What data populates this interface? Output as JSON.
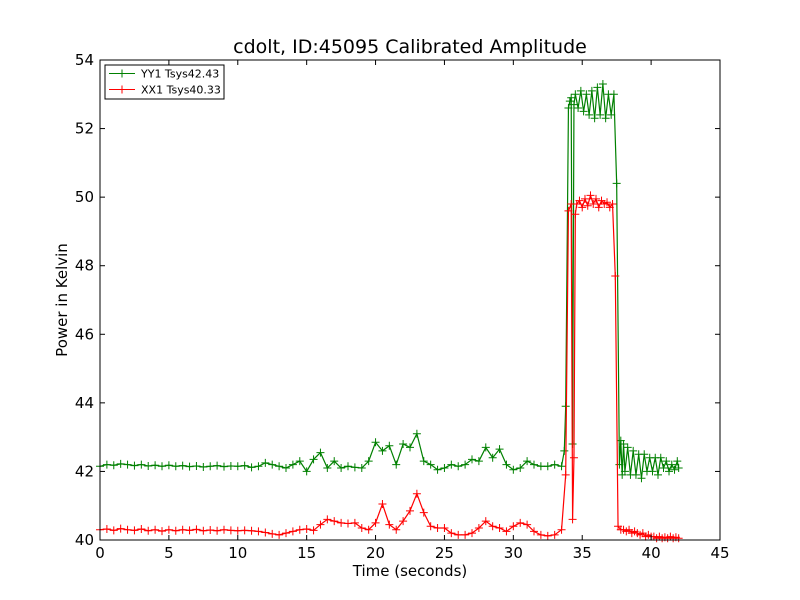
{
  "chart_data": {
    "type": "line",
    "title": "cdolt, ID:45095 Calibrated Amplitude",
    "xlabel": "Time (seconds)",
    "ylabel": "Power in Kelvin",
    "xlim": [
      0,
      45
    ],
    "ylim": [
      40,
      54
    ],
    "xticks": [
      "0",
      "5",
      "10",
      "15",
      "20",
      "25",
      "30",
      "35",
      "40",
      "45"
    ],
    "yticks": [
      "40",
      "42",
      "44",
      "46",
      "48",
      "50",
      "52",
      "54"
    ],
    "grid": false,
    "legend_position": "top-left",
    "marker": "plus",
    "series": [
      {
        "name": "YY1 Tsys42.43",
        "color": "#008000",
        "points": [
          [
            0.0,
            42.15
          ],
          [
            0.5,
            42.2
          ],
          [
            1.0,
            42.18
          ],
          [
            1.5,
            42.22
          ],
          [
            2.0,
            42.2
          ],
          [
            2.5,
            42.17
          ],
          [
            3.0,
            42.2
          ],
          [
            3.5,
            42.16
          ],
          [
            4.0,
            42.18
          ],
          [
            4.5,
            42.15
          ],
          [
            5.0,
            42.18
          ],
          [
            5.5,
            42.15
          ],
          [
            6.0,
            42.17
          ],
          [
            6.5,
            42.14
          ],
          [
            7.0,
            42.16
          ],
          [
            7.5,
            42.13
          ],
          [
            8.0,
            42.15
          ],
          [
            8.5,
            42.17
          ],
          [
            9.0,
            42.14
          ],
          [
            9.5,
            42.16
          ],
          [
            10.0,
            42.15
          ],
          [
            10.5,
            42.17
          ],
          [
            11.0,
            42.12
          ],
          [
            11.5,
            42.15
          ],
          [
            12.0,
            42.25
          ],
          [
            12.5,
            42.2
          ],
          [
            13.0,
            42.15
          ],
          [
            13.5,
            42.1
          ],
          [
            14.0,
            42.2
          ],
          [
            14.5,
            42.3
          ],
          [
            15.0,
            42.0
          ],
          [
            15.5,
            42.35
          ],
          [
            16.0,
            42.55
          ],
          [
            16.5,
            42.1
          ],
          [
            17.0,
            42.3
          ],
          [
            17.5,
            42.1
          ],
          [
            18.0,
            42.15
          ],
          [
            18.5,
            42.12
          ],
          [
            19.0,
            42.1
          ],
          [
            19.5,
            42.3
          ],
          [
            20.0,
            42.85
          ],
          [
            20.5,
            42.6
          ],
          [
            21.0,
            42.75
          ],
          [
            21.5,
            42.2
          ],
          [
            22.0,
            42.8
          ],
          [
            22.5,
            42.7
          ],
          [
            23.0,
            43.1
          ],
          [
            23.5,
            42.3
          ],
          [
            24.0,
            42.2
          ],
          [
            24.5,
            42.05
          ],
          [
            25.0,
            42.1
          ],
          [
            25.5,
            42.2
          ],
          [
            26.0,
            42.15
          ],
          [
            26.5,
            42.2
          ],
          [
            27.0,
            42.35
          ],
          [
            27.5,
            42.3
          ],
          [
            28.0,
            42.7
          ],
          [
            28.5,
            42.4
          ],
          [
            29.0,
            42.65
          ],
          [
            29.5,
            42.2
          ],
          [
            30.0,
            42.05
          ],
          [
            30.5,
            42.1
          ],
          [
            31.0,
            42.3
          ],
          [
            31.5,
            42.2
          ],
          [
            32.0,
            42.15
          ],
          [
            32.5,
            42.15
          ],
          [
            33.0,
            42.2
          ],
          [
            33.5,
            42.15
          ],
          [
            33.7,
            42.6
          ],
          [
            33.8,
            43.9
          ],
          [
            34.0,
            52.6
          ],
          [
            34.1,
            52.8
          ],
          [
            34.2,
            52.9
          ],
          [
            34.3,
            42.8
          ],
          [
            34.4,
            52.7
          ],
          [
            34.5,
            53.0
          ],
          [
            34.7,
            52.6
          ],
          [
            34.9,
            53.1
          ],
          [
            35.1,
            52.5
          ],
          [
            35.3,
            53.0
          ],
          [
            35.5,
            52.4
          ],
          [
            35.7,
            53.1
          ],
          [
            35.9,
            52.3
          ],
          [
            36.1,
            53.2
          ],
          [
            36.3,
            52.4
          ],
          [
            36.5,
            53.3
          ],
          [
            36.7,
            52.3
          ],
          [
            36.9,
            53.0
          ],
          [
            37.1,
            52.4
          ],
          [
            37.3,
            53.0
          ],
          [
            37.5,
            50.4
          ],
          [
            37.7,
            42.2
          ],
          [
            37.8,
            42.9
          ],
          [
            37.9,
            41.9
          ],
          [
            38.0,
            42.8
          ],
          [
            38.1,
            42.0
          ],
          [
            38.3,
            42.7
          ],
          [
            38.5,
            41.9
          ],
          [
            38.7,
            42.6
          ],
          [
            38.9,
            41.9
          ],
          [
            39.1,
            42.5
          ],
          [
            39.3,
            41.8
          ],
          [
            39.5,
            42.5
          ],
          [
            39.7,
            42.0
          ],
          [
            39.9,
            42.4
          ],
          [
            40.1,
            42.0
          ],
          [
            40.3,
            42.4
          ],
          [
            40.5,
            41.9
          ],
          [
            40.7,
            42.4
          ],
          [
            40.9,
            42.1
          ],
          [
            41.1,
            42.3
          ],
          [
            41.3,
            42.0
          ],
          [
            41.5,
            42.2
          ],
          [
            41.7,
            42.05
          ],
          [
            41.9,
            42.3
          ],
          [
            42.0,
            42.1
          ]
        ]
      },
      {
        "name": "XX1 Tsys40.33",
        "color": "#ff0000",
        "points": [
          [
            0.0,
            40.3
          ],
          [
            0.5,
            40.32
          ],
          [
            1.0,
            40.28
          ],
          [
            1.5,
            40.33
          ],
          [
            2.0,
            40.3
          ],
          [
            2.5,
            40.28
          ],
          [
            3.0,
            40.32
          ],
          [
            3.5,
            40.27
          ],
          [
            4.0,
            40.3
          ],
          [
            4.5,
            40.26
          ],
          [
            5.0,
            40.3
          ],
          [
            5.5,
            40.27
          ],
          [
            6.0,
            40.3
          ],
          [
            6.5,
            40.28
          ],
          [
            7.0,
            40.31
          ],
          [
            7.5,
            40.27
          ],
          [
            8.0,
            40.29
          ],
          [
            8.5,
            40.27
          ],
          [
            9.0,
            40.3
          ],
          [
            9.5,
            40.28
          ],
          [
            10.0,
            40.27
          ],
          [
            10.5,
            40.28
          ],
          [
            11.0,
            40.27
          ],
          [
            11.5,
            40.25
          ],
          [
            12.0,
            40.22
          ],
          [
            12.5,
            40.18
          ],
          [
            13.0,
            40.15
          ],
          [
            13.5,
            40.2
          ],
          [
            14.0,
            40.25
          ],
          [
            14.5,
            40.3
          ],
          [
            15.0,
            40.32
          ],
          [
            15.5,
            40.28
          ],
          [
            16.0,
            40.45
          ],
          [
            16.5,
            40.6
          ],
          [
            17.0,
            40.55
          ],
          [
            17.5,
            40.5
          ],
          [
            18.0,
            40.48
          ],
          [
            18.5,
            40.5
          ],
          [
            19.0,
            40.35
          ],
          [
            19.5,
            40.3
          ],
          [
            20.0,
            40.5
          ],
          [
            20.5,
            41.05
          ],
          [
            21.0,
            40.45
          ],
          [
            21.5,
            40.3
          ],
          [
            22.0,
            40.55
          ],
          [
            22.5,
            40.85
          ],
          [
            23.0,
            41.35
          ],
          [
            23.5,
            40.8
          ],
          [
            24.0,
            40.4
          ],
          [
            24.5,
            40.35
          ],
          [
            25.0,
            40.35
          ],
          [
            25.5,
            40.2
          ],
          [
            26.0,
            40.15
          ],
          [
            26.5,
            40.15
          ],
          [
            27.0,
            40.2
          ],
          [
            27.5,
            40.35
          ],
          [
            28.0,
            40.55
          ],
          [
            28.5,
            40.4
          ],
          [
            29.0,
            40.35
          ],
          [
            29.5,
            40.25
          ],
          [
            30.0,
            40.4
          ],
          [
            30.5,
            40.5
          ],
          [
            31.0,
            40.45
          ],
          [
            31.5,
            40.25
          ],
          [
            32.0,
            40.15
          ],
          [
            32.5,
            40.12
          ],
          [
            33.0,
            40.15
          ],
          [
            33.5,
            40.3
          ],
          [
            33.8,
            41.9
          ],
          [
            34.0,
            49.6
          ],
          [
            34.2,
            49.8
          ],
          [
            34.3,
            40.6
          ],
          [
            34.4,
            42.4
          ],
          [
            34.5,
            49.5
          ],
          [
            34.6,
            49.8
          ],
          [
            34.8,
            49.9
          ],
          [
            35.0,
            49.7
          ],
          [
            35.2,
            49.95
          ],
          [
            35.4,
            49.75
          ],
          [
            35.6,
            50.05
          ],
          [
            35.8,
            49.8
          ],
          [
            36.0,
            49.95
          ],
          [
            36.2,
            49.7
          ],
          [
            36.4,
            49.9
          ],
          [
            36.6,
            49.8
          ],
          [
            36.8,
            49.85
          ],
          [
            37.0,
            49.7
          ],
          [
            37.2,
            49.8
          ],
          [
            37.4,
            47.7
          ],
          [
            37.6,
            40.4
          ],
          [
            37.8,
            40.3
          ],
          [
            38.0,
            40.3
          ],
          [
            38.2,
            40.25
          ],
          [
            38.4,
            40.3
          ],
          [
            38.6,
            40.2
          ],
          [
            38.8,
            40.25
          ],
          [
            39.0,
            40.2
          ],
          [
            39.2,
            40.15
          ],
          [
            39.4,
            40.2
          ],
          [
            39.6,
            40.1
          ],
          [
            39.8,
            40.15
          ],
          [
            40.0,
            40.1
          ],
          [
            40.2,
            40.1
          ],
          [
            40.4,
            40.05
          ],
          [
            40.6,
            40.1
          ],
          [
            40.8,
            40.05
          ],
          [
            41.0,
            40.08
          ],
          [
            41.2,
            40.05
          ],
          [
            41.4,
            40.1
          ],
          [
            41.6,
            40.05
          ],
          [
            41.8,
            40.08
          ],
          [
            42.0,
            40.05
          ]
        ]
      }
    ]
  }
}
